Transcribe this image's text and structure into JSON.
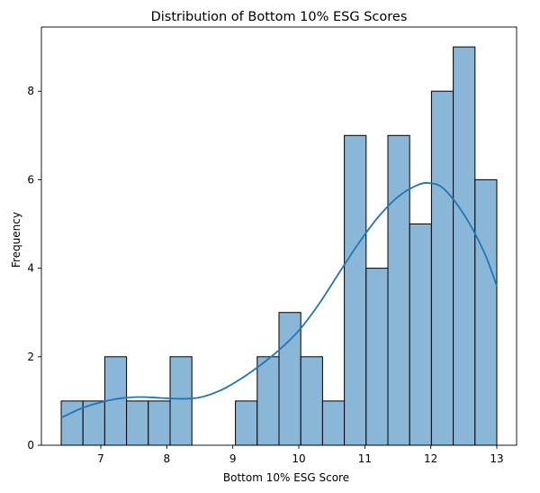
{
  "chart_data": {
    "type": "histogram",
    "title": "Distribution of Bottom 10% ESG Scores",
    "xlabel": "Bottom 10% ESG Score",
    "ylabel": "Frequency",
    "xlim": [
      6.1,
      13.3
    ],
    "ylim": [
      0,
      9.45
    ],
    "xticks": [
      7,
      8,
      9,
      10,
      11,
      12,
      13
    ],
    "yticks": [
      0,
      2,
      4,
      6,
      8
    ],
    "bin_start": 6.4,
    "bin_width": 0.33,
    "counts": [
      1,
      1,
      2,
      1,
      1,
      2,
      0,
      0,
      1,
      2,
      3,
      2,
      1,
      7,
      4,
      7,
      5,
      8,
      9,
      6
    ],
    "bar_color": "#8ab7d8",
    "kde_color": "#1f77b4",
    "kde": {
      "x": [
        6.4,
        6.7,
        7.0,
        7.3,
        7.6,
        7.9,
        8.2,
        8.5,
        8.8,
        9.1,
        9.4,
        9.7,
        10.0,
        10.3,
        10.6,
        10.9,
        11.2,
        11.5,
        11.8,
        12.0,
        12.2,
        12.5,
        12.8,
        13.0
      ],
      "y": [
        0.62,
        0.83,
        0.97,
        1.06,
        1.09,
        1.07,
        1.05,
        1.08,
        1.23,
        1.48,
        1.79,
        2.15,
        2.59,
        3.18,
        3.87,
        4.55,
        5.15,
        5.61,
        5.88,
        5.92,
        5.79,
        5.22,
        4.39,
        3.6
      ]
    }
  }
}
